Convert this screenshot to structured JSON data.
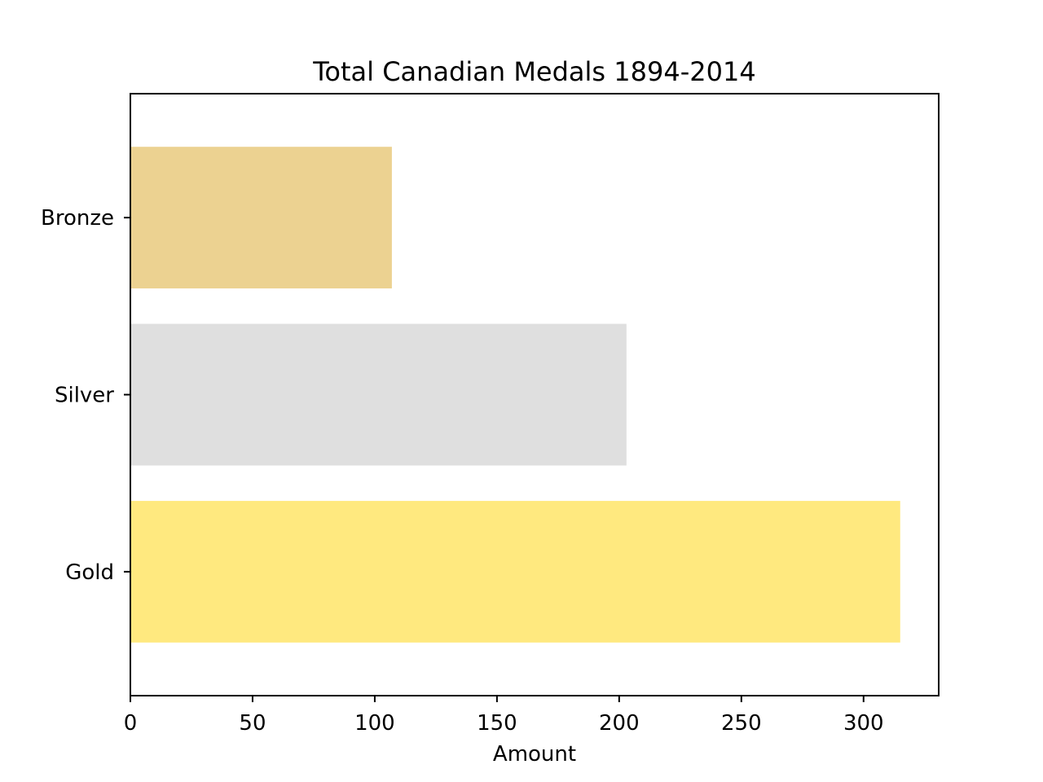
{
  "chart_data": {
    "type": "bar",
    "orientation": "horizontal",
    "title": "Total Canadian Medals 1894-2014",
    "xlabel": "Amount",
    "ylabel": "",
    "categories": [
      "Gold",
      "Silver",
      "Bronze"
    ],
    "values": [
      315,
      203,
      107
    ],
    "colors": [
      "#ffe97f",
      "#dfdfdf",
      "#ecd291"
    ],
    "xlim": [
      0,
      330.75
    ],
    "xticks": [
      0,
      50,
      100,
      150,
      200,
      250,
      300
    ],
    "grid": false,
    "legend": "none"
  }
}
